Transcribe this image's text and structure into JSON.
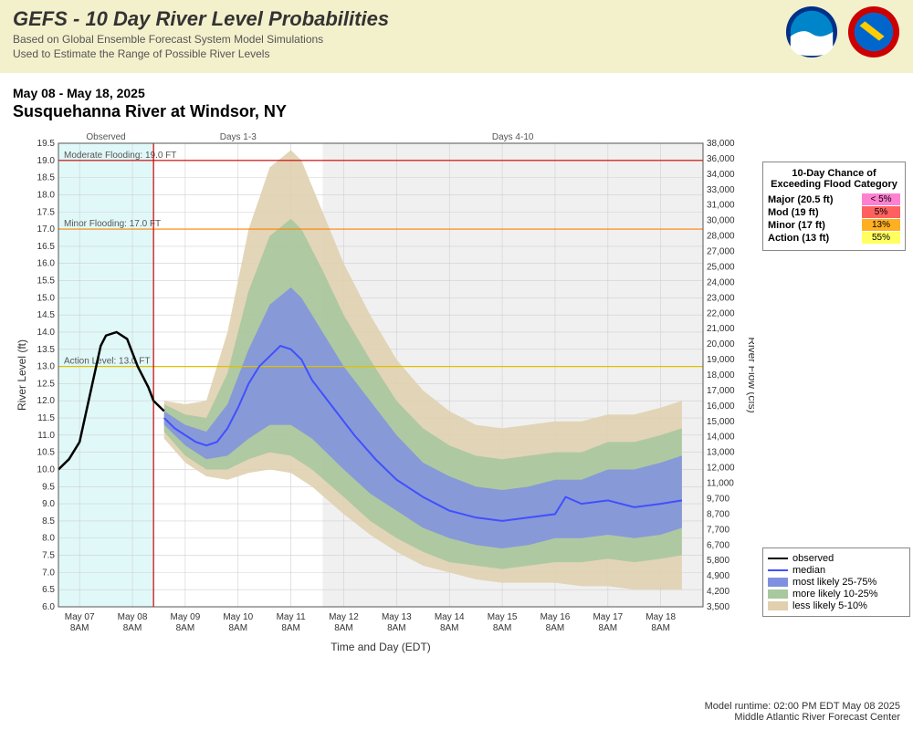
{
  "header": {
    "title": "GEFS - 10 Day River Level Probabilities",
    "sub1": "Based on Global Ensemble Forecast System Model Simulations",
    "sub2": "Used to Estimate the Range of Possible River Levels"
  },
  "meta": {
    "date_range": "May 08 - May 18, 2025",
    "location": "Susquehanna River at Windsor, NY",
    "x_axis": "Time and Day (EDT)",
    "y_axis_left": "River Level (ft)",
    "y_axis_right": "River Flow (cfs)"
  },
  "sections": {
    "observed": "Observed",
    "d13": "Days 1-3",
    "d410": "Days 4-10"
  },
  "thresholds": [
    {
      "label": "Moderate Flooding: 19.0 FT",
      "value": 19.0,
      "color": "#cc0000"
    },
    {
      "label": "Minor Flooding: 17.0 FT",
      "value": 17.0,
      "color": "#ff8000"
    },
    {
      "label": "Action Level: 13.0 FT",
      "value": 13.0,
      "color": "#e0c000"
    }
  ],
  "y_left": {
    "min": 6.0,
    "max": 19.5,
    "step": 0.5
  },
  "y_right": [
    "3,500",
    "4,200",
    "4,900",
    "5,800",
    "6,700",
    "7,700",
    "8,700",
    "9,700",
    "11,000",
    "12,000",
    "13,000",
    "14,000",
    "15,000",
    "16,000",
    "17,000",
    "18,000",
    "19,000",
    "20,000",
    "21,000",
    "22,000",
    "23,000",
    "24,000",
    "25,000",
    "27,000",
    "28,000",
    "30,000",
    "31,000",
    "33,000",
    "34,000",
    "36,000",
    "38,000"
  ],
  "x_ticks": [
    "May 07\n8AM",
    "May 08\n8AM",
    "May 09\n8AM",
    "May 10\n8AM",
    "May 11\n8AM",
    "May 12\n8AM",
    "May 13\n8AM",
    "May 14\n8AM",
    "May 15\n8AM",
    "May 16\n8AM",
    "May 17\n8AM",
    "May 18\n8AM"
  ],
  "now_day": 1.4,
  "section2_day": 4.6,
  "observed": [
    [
      -0.4,
      10.0
    ],
    [
      -0.2,
      10.3
    ],
    [
      0.0,
      10.8
    ],
    [
      0.2,
      12.2
    ],
    [
      0.4,
      13.6
    ],
    [
      0.5,
      13.9
    ],
    [
      0.7,
      14.0
    ],
    [
      0.9,
      13.8
    ],
    [
      1.1,
      13.0
    ],
    [
      1.3,
      12.4
    ],
    [
      1.4,
      12.0
    ],
    [
      1.6,
      11.7
    ]
  ],
  "median": [
    [
      1.6,
      11.5
    ],
    [
      1.8,
      11.2
    ],
    [
      2.0,
      11.0
    ],
    [
      2.2,
      10.8
    ],
    [
      2.4,
      10.7
    ],
    [
      2.6,
      10.8
    ],
    [
      2.8,
      11.2
    ],
    [
      3.0,
      11.8
    ],
    [
      3.2,
      12.5
    ],
    [
      3.4,
      13.0
    ],
    [
      3.6,
      13.3
    ],
    [
      3.8,
      13.6
    ],
    [
      4.0,
      13.5
    ],
    [
      4.2,
      13.2
    ],
    [
      4.4,
      12.6
    ],
    [
      4.8,
      11.8
    ],
    [
      5.2,
      11.0
    ],
    [
      5.6,
      10.3
    ],
    [
      6.0,
      9.7
    ],
    [
      6.5,
      9.2
    ],
    [
      7.0,
      8.8
    ],
    [
      7.5,
      8.6
    ],
    [
      8.0,
      8.5
    ],
    [
      8.5,
      8.6
    ],
    [
      9.0,
      8.7
    ],
    [
      9.2,
      9.2
    ],
    [
      9.5,
      9.0
    ],
    [
      10.0,
      9.1
    ],
    [
      10.5,
      8.9
    ],
    [
      11.0,
      9.0
    ],
    [
      11.4,
      9.1
    ]
  ],
  "band_25_75": {
    "upper": [
      [
        1.6,
        11.7
      ],
      [
        2.0,
        11.3
      ],
      [
        2.4,
        11.1
      ],
      [
        2.8,
        11.9
      ],
      [
        3.2,
        13.5
      ],
      [
        3.6,
        14.8
      ],
      [
        4.0,
        15.3
      ],
      [
        4.2,
        15.0
      ],
      [
        4.6,
        14.0
      ],
      [
        5.0,
        13.0
      ],
      [
        5.5,
        12.0
      ],
      [
        6.0,
        11.0
      ],
      [
        6.5,
        10.2
      ],
      [
        7.0,
        9.8
      ],
      [
        7.5,
        9.5
      ],
      [
        8.0,
        9.4
      ],
      [
        8.5,
        9.5
      ],
      [
        9.0,
        9.7
      ],
      [
        9.5,
        9.7
      ],
      [
        10.0,
        10.0
      ],
      [
        10.5,
        10.0
      ],
      [
        11.0,
        10.2
      ],
      [
        11.4,
        10.4
      ]
    ],
    "lower": [
      [
        1.6,
        11.3
      ],
      [
        2.0,
        10.7
      ],
      [
        2.4,
        10.3
      ],
      [
        2.8,
        10.4
      ],
      [
        3.2,
        10.9
      ],
      [
        3.6,
        11.3
      ],
      [
        4.0,
        11.3
      ],
      [
        4.4,
        10.9
      ],
      [
        5.0,
        10.0
      ],
      [
        5.5,
        9.3
      ],
      [
        6.0,
        8.8
      ],
      [
        6.5,
        8.3
      ],
      [
        7.0,
        8.0
      ],
      [
        7.5,
        7.8
      ],
      [
        8.0,
        7.7
      ],
      [
        8.5,
        7.8
      ],
      [
        9.0,
        8.0
      ],
      [
        9.5,
        8.0
      ],
      [
        10.0,
        8.1
      ],
      [
        10.5,
        8.0
      ],
      [
        11.0,
        8.1
      ],
      [
        11.4,
        8.3
      ]
    ]
  },
  "band_10_25": {
    "upper": [
      [
        1.6,
        11.9
      ],
      [
        2.0,
        11.6
      ],
      [
        2.4,
        11.5
      ],
      [
        2.8,
        12.8
      ],
      [
        3.2,
        15.2
      ],
      [
        3.6,
        16.8
      ],
      [
        4.0,
        17.3
      ],
      [
        4.2,
        17.0
      ],
      [
        4.6,
        15.8
      ],
      [
        5.0,
        14.5
      ],
      [
        5.5,
        13.2
      ],
      [
        6.0,
        12.0
      ],
      [
        6.5,
        11.2
      ],
      [
        7.0,
        10.7
      ],
      [
        7.5,
        10.4
      ],
      [
        8.0,
        10.3
      ],
      [
        8.5,
        10.4
      ],
      [
        9.0,
        10.5
      ],
      [
        9.5,
        10.5
      ],
      [
        10.0,
        10.8
      ],
      [
        10.5,
        10.8
      ],
      [
        11.0,
        11.0
      ],
      [
        11.4,
        11.2
      ]
    ],
    "lower": [
      [
        1.6,
        11.1
      ],
      [
        2.0,
        10.4
      ],
      [
        2.4,
        10.0
      ],
      [
        2.8,
        10.0
      ],
      [
        3.2,
        10.3
      ],
      [
        3.6,
        10.5
      ],
      [
        4.0,
        10.4
      ],
      [
        4.4,
        10.0
      ],
      [
        5.0,
        9.2
      ],
      [
        5.5,
        8.5
      ],
      [
        6.0,
        8.0
      ],
      [
        6.5,
        7.6
      ],
      [
        7.0,
        7.3
      ],
      [
        7.5,
        7.2
      ],
      [
        8.0,
        7.1
      ],
      [
        8.5,
        7.2
      ],
      [
        9.0,
        7.3
      ],
      [
        9.5,
        7.3
      ],
      [
        10.0,
        7.4
      ],
      [
        10.5,
        7.3
      ],
      [
        11.0,
        7.4
      ],
      [
        11.4,
        7.5
      ]
    ]
  },
  "band_5_10": {
    "upper": [
      [
        1.6,
        12.0
      ],
      [
        2.0,
        11.9
      ],
      [
        2.4,
        12.0
      ],
      [
        2.8,
        14.0
      ],
      [
        3.2,
        17.0
      ],
      [
        3.6,
        18.8
      ],
      [
        4.0,
        19.3
      ],
      [
        4.2,
        19.0
      ],
      [
        4.6,
        17.5
      ],
      [
        5.0,
        16.0
      ],
      [
        5.5,
        14.5
      ],
      [
        6.0,
        13.2
      ],
      [
        6.5,
        12.3
      ],
      [
        7.0,
        11.7
      ],
      [
        7.5,
        11.3
      ],
      [
        8.0,
        11.2
      ],
      [
        8.5,
        11.3
      ],
      [
        9.0,
        11.4
      ],
      [
        9.5,
        11.4
      ],
      [
        10.0,
        11.6
      ],
      [
        10.5,
        11.6
      ],
      [
        11.0,
        11.8
      ],
      [
        11.4,
        12.0
      ]
    ],
    "lower": [
      [
        1.6,
        10.9
      ],
      [
        2.0,
        10.2
      ],
      [
        2.4,
        9.8
      ],
      [
        2.8,
        9.7
      ],
      [
        3.2,
        9.9
      ],
      [
        3.6,
        10.0
      ],
      [
        4.0,
        9.9
      ],
      [
        4.4,
        9.5
      ],
      [
        5.0,
        8.7
      ],
      [
        5.5,
        8.1
      ],
      [
        6.0,
        7.6
      ],
      [
        6.5,
        7.2
      ],
      [
        7.0,
        7.0
      ],
      [
        7.5,
        6.8
      ],
      [
        8.0,
        6.7
      ],
      [
        8.5,
        6.7
      ],
      [
        9.0,
        6.7
      ],
      [
        9.5,
        6.6
      ],
      [
        10.0,
        6.6
      ],
      [
        10.5,
        6.5
      ],
      [
        11.0,
        6.5
      ],
      [
        11.4,
        6.5
      ]
    ]
  },
  "colors": {
    "observed": "#000000",
    "median": "#4050ff",
    "band1": "#8090e0",
    "band2": "#a8c8a0",
    "band3": "#e0d0b0",
    "observed_bg": "#e0f8f8",
    "grid": "#d0d0d0",
    "d410_bg": "#f0f0f0"
  },
  "exceed": {
    "title": "10-Day Chance of Exceeding Flood Category",
    "rows": [
      {
        "label": "Major (20.5 ft)",
        "pct": "< 5%",
        "color": "#ff80d0"
      },
      {
        "label": "Mod (19 ft)",
        "pct": "5%",
        "color": "#ff6060"
      },
      {
        "label": "Minor (17 ft)",
        "pct": "13%",
        "color": "#ffb020"
      },
      {
        "label": "Action (13 ft)",
        "pct": "55%",
        "color": "#ffff60"
      }
    ]
  },
  "legend2": [
    {
      "type": "line",
      "label": "observed",
      "color": "#000000"
    },
    {
      "type": "line",
      "label": "median",
      "color": "#4050ff"
    },
    {
      "type": "box",
      "label": "most likely 25-75%",
      "color": "#8090e0"
    },
    {
      "type": "box",
      "label": "more likely 10-25%",
      "color": "#a8c8a0"
    },
    {
      "type": "box",
      "label": "less likely 5-10%",
      "color": "#e0d0b0"
    }
  ],
  "footer": {
    "runtime": "Model runtime: 02:00 PM EDT May 08 2025",
    "center": "Middle Atlantic River Forecast Center"
  }
}
